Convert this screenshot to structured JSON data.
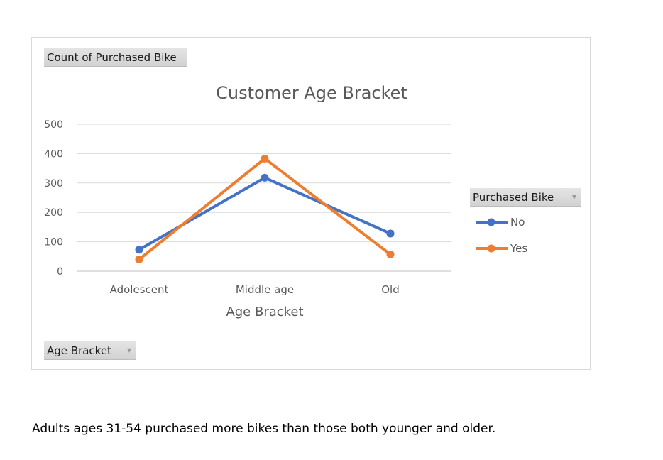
{
  "pivot": {
    "value_field": "Count of Purchased Bike",
    "row_field": "Age Bracket",
    "legend_field": "Purchased Bike"
  },
  "chart_data": {
    "type": "line",
    "title": "Customer Age Bracket",
    "xlabel": "Age Bracket",
    "ylabel": "",
    "categories": [
      "Adolescent",
      "Middle age",
      "Old"
    ],
    "series": [
      {
        "name": "No",
        "values": [
          73,
          318,
          128
        ],
        "color": "#4472c4"
      },
      {
        "name": "Yes",
        "values": [
          40,
          383,
          57
        ],
        "color": "#ed7d31"
      }
    ],
    "ylim": [
      0,
      500
    ],
    "yticks": [
      0,
      100,
      200,
      300,
      400,
      500
    ],
    "grid": true,
    "legend_position": "right",
    "marker": "circle"
  },
  "caption": "Adults ages 31-54 purchased more bikes than those both younger and older."
}
